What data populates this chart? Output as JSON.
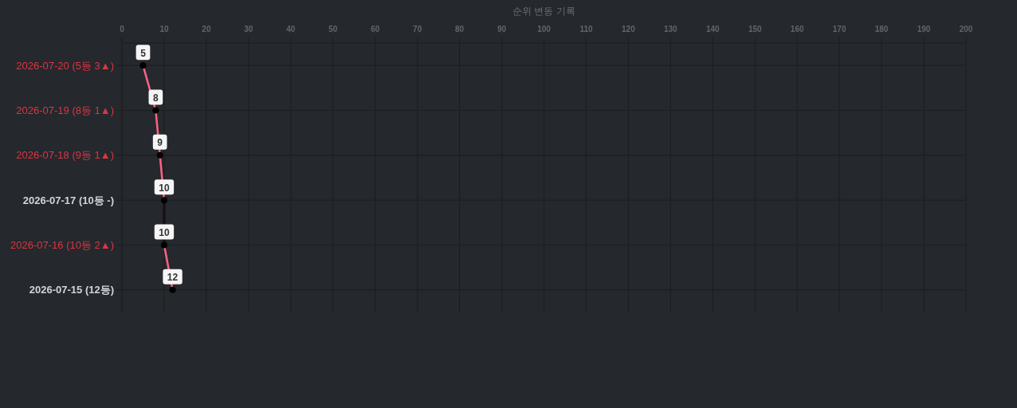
{
  "chart_data": {
    "type": "line",
    "orientation": "horizontal",
    "title": "순위 변동 기록",
    "categories": [
      "2026-07-20 (5등 3▲)",
      "2026-07-19 (8등 1▲)",
      "2026-07-18 (9등 1▲)",
      "2026-07-17 (10등 -)",
      "2026-07-16 (10등 2▲)",
      "2026-07-15 (12등)"
    ],
    "xlim": [
      0,
      200
    ],
    "xticks": [
      0,
      10,
      20,
      30,
      40,
      50,
      60,
      70,
      80,
      90,
      100,
      110,
      120,
      130,
      140,
      150,
      160,
      170,
      180,
      190,
      200
    ],
    "series": [
      {
        "color": "#ff6384",
        "values": [
          5,
          8,
          9,
          10,
          10,
          12
        ],
        "colors": [
          "#000000",
          "#000000",
          "#000000",
          "#000000",
          "#000000",
          "#000000"
        ],
        "value_labels": [
          "5",
          "8",
          "9",
          "10",
          "10",
          "12"
        ]
      },
      {
        "color": "#111111",
        "values": [
          null,
          null,
          null,
          10,
          10,
          null
        ],
        "marker": "none"
      }
    ],
    "marker": "circle",
    "grid": true
  }
}
